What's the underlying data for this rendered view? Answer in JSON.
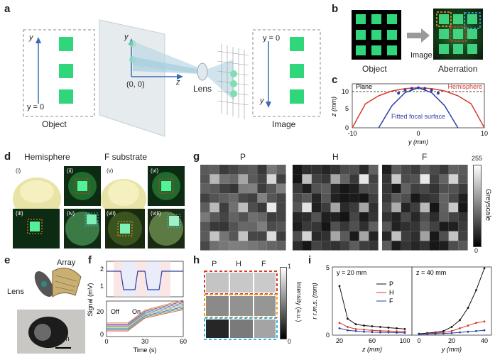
{
  "panel_labels": {
    "a": "a",
    "b": "b",
    "c": "c",
    "d": "d",
    "e": "e",
    "f": "f",
    "g": "g",
    "h": "h",
    "i": "i"
  },
  "panel_a": {
    "object_label": "Object",
    "image_label": "Image",
    "lens_label": "Lens",
    "y_axis": "y",
    "z_axis": "z",
    "origin": "(0, 0)",
    "y_zero": "y = 0"
  },
  "panel_b": {
    "object_label": "Object",
    "arrow_label": "Image",
    "aberration_label": "Aberration"
  },
  "panel_c": {
    "plane_label": "Plane",
    "hemisphere_label": "Hemisphere",
    "fitted_label": "Fitted focal surface",
    "xlabel": "y (mm)",
    "ylabel": "z (mm)",
    "xticks": [
      "-10",
      "0",
      "10"
    ],
    "yticks": [
      "0",
      "5",
      "10"
    ]
  },
  "panel_d": {
    "hemisphere_title": "Hemisphere",
    "f_title": "F substrate",
    "sub": [
      "(i)",
      "(ii)",
      "(iii)",
      "(iv)",
      "(v)",
      "(vi)",
      "(vii)",
      "(viii)"
    ]
  },
  "panel_e": {
    "array_label": "Array",
    "lens_label": "Lens",
    "scale_label": "1 cm"
  },
  "panel_f": {
    "ylabel": "Signal (mV)",
    "xlabel": "Time (s)",
    "off": "Off",
    "on": "On",
    "top_yticks": [
      "1",
      "2"
    ],
    "bottom_yticks": [
      "0",
      "20"
    ],
    "xticks": [
      "0",
      "30",
      "60"
    ]
  },
  "panel_g": {
    "titles": [
      "P",
      "H",
      "F"
    ],
    "colorbar_label": "Greyscale",
    "cb_max": "255",
    "cb_min": "0"
  },
  "panel_h": {
    "titles": [
      "P",
      "H",
      "F"
    ],
    "colorbar_label": "Intensity (a.u.)",
    "cb_max": "1",
    "cb_min": "0"
  },
  "panel_i": {
    "left_title": "y = 20 mm",
    "right_title": "z = 40 mm",
    "ylabel": "r r.m.s. (mm)",
    "left_xlabel": "z (mm)",
    "right_xlabel": "y (mm)",
    "yticks": [
      "0",
      "5"
    ],
    "left_xticks": [
      "20",
      "60",
      "100"
    ],
    "right_xticks": [
      "0",
      "20",
      "40"
    ],
    "legend": [
      "P",
      "H",
      "F"
    ]
  },
  "colors": {
    "green": "#2fd67a",
    "red": "#d83a2a",
    "blue": "#2a3fa8",
    "orange": "#f0a020",
    "cyan": "#37b6e6"
  },
  "chart_data": [
    {
      "type": "line",
      "title": "",
      "xlabel": "y (mm)",
      "ylabel": "z (mm)",
      "xlim": [
        -10,
        10
      ],
      "ylim": [
        0,
        11
      ],
      "series": [
        {
          "name": "Plane",
          "x": [
            -10,
            10
          ],
          "y": [
            10,
            10
          ]
        },
        {
          "name": "Hemisphere",
          "x": [
            -10,
            -8,
            -6,
            -4,
            -2,
            0,
            2,
            4,
            6,
            8,
            10
          ],
          "y": [
            0,
            6,
            8,
            9.2,
            9.8,
            10,
            9.8,
            9.2,
            8,
            6,
            0
          ]
        },
        {
          "name": "Fitted focal surface",
          "x": [
            -6,
            -4,
            -2,
            0,
            2,
            4,
            6
          ],
          "y": [
            0,
            5.5,
            8.8,
            10,
            8.8,
            5.5,
            0
          ]
        }
      ]
    },
    {
      "type": "line",
      "title": "y = 20 mm",
      "xlabel": "z (mm)",
      "ylabel": "r r.m.s. (mm)",
      "ylim": [
        0,
        5
      ],
      "x": [
        20,
        30,
        40,
        50,
        60,
        70,
        80,
        90,
        100
      ],
      "series": [
        {
          "name": "P",
          "values": [
            3.6,
            1.2,
            0.8,
            0.7,
            0.65,
            0.6,
            0.55,
            0.5,
            0.45
          ]
        },
        {
          "name": "H",
          "values": [
            0.9,
            0.6,
            0.45,
            0.4,
            0.35,
            0.32,
            0.3,
            0.28,
            0.27
          ]
        },
        {
          "name": "F",
          "values": [
            0.5,
            0.35,
            0.3,
            0.25,
            0.22,
            0.2,
            0.2,
            0.18,
            0.17
          ]
        }
      ]
    },
    {
      "type": "line",
      "title": "z = 40 mm",
      "xlabel": "y (mm)",
      "ylabel": "r r.m.s. (mm)",
      "ylim": [
        0,
        5
      ],
      "x": [
        0,
        5,
        10,
        15,
        20,
        25,
        30,
        35,
        40
      ],
      "series": [
        {
          "name": "P",
          "values": [
            0.1,
            0.15,
            0.2,
            0.3,
            0.6,
            1.1,
            2.0,
            3.3,
            4.9
          ]
        },
        {
          "name": "H",
          "values": [
            0.05,
            0.1,
            0.15,
            0.2,
            0.3,
            0.5,
            0.7,
            0.9,
            1.0
          ]
        },
        {
          "name": "F",
          "values": [
            0.05,
            0.08,
            0.1,
            0.12,
            0.15,
            0.2,
            0.25,
            0.3,
            0.35
          ]
        }
      ]
    }
  ]
}
